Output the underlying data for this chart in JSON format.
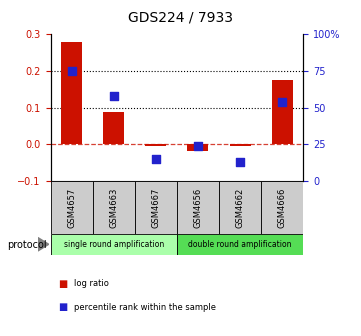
{
  "title": "GDS224 / 7933",
  "samples": [
    "GSM4657",
    "GSM4663",
    "GSM4667",
    "GSM4656",
    "GSM4662",
    "GSM4666"
  ],
  "log_ratio": [
    0.278,
    0.088,
    -0.005,
    -0.018,
    -0.005,
    0.175
  ],
  "percentile_rank_pct": [
    75,
    58,
    15,
    24,
    13,
    54
  ],
  "bar_color": "#cc1100",
  "dot_color": "#2222cc",
  "ylim_left": [
    -0.1,
    0.3
  ],
  "ylim_right": [
    0,
    100
  ],
  "yticks_left": [
    -0.1,
    0.0,
    0.1,
    0.2,
    0.3
  ],
  "yticks_right": [
    0,
    25,
    50,
    75,
    100
  ],
  "ytick_labels_right": [
    "0",
    "25",
    "50",
    "75",
    "100%"
  ],
  "hlines": [
    0.1,
    0.2
  ],
  "group1_label": "single round amplification",
  "group2_label": "double round amplification",
  "group1_color": "#aaffaa",
  "group2_color": "#55dd55",
  "protocol_label": "protocol",
  "legend_items": [
    "log ratio",
    "percentile rank within the sample"
  ],
  "legend_colors": [
    "#cc1100",
    "#2222cc"
  ],
  "bar_width": 0.5,
  "title_fontsize": 10,
  "tick_fontsize": 7,
  "dot_size": 28
}
